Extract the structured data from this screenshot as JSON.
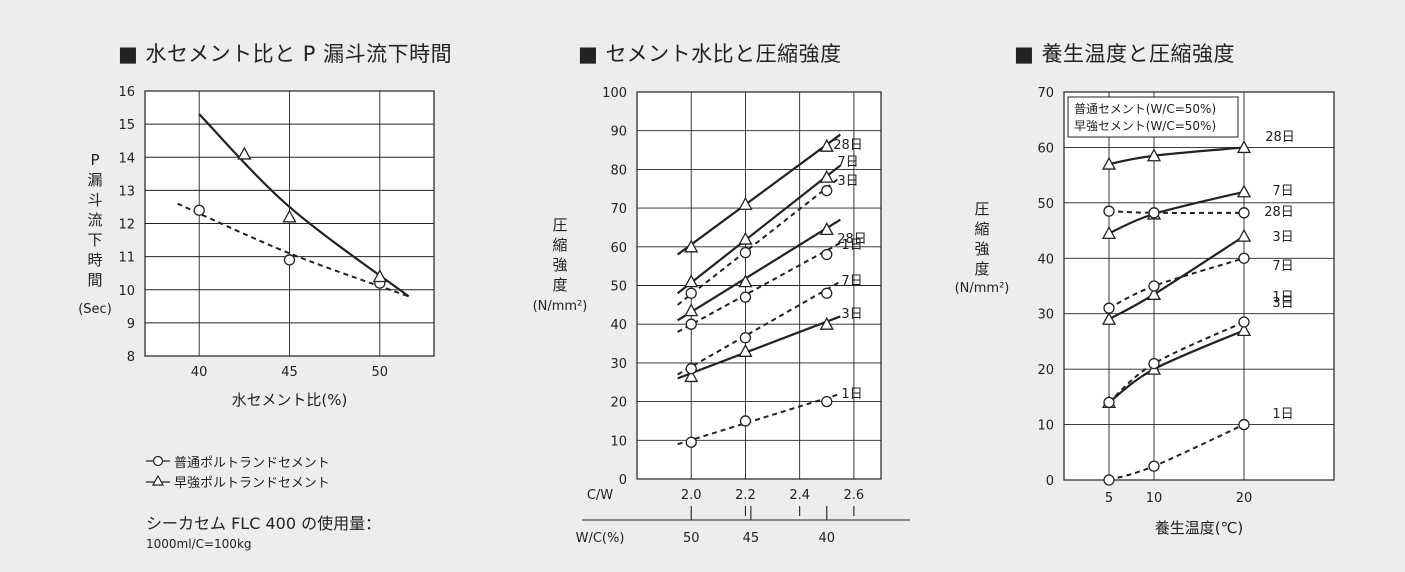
{
  "panel1": {
    "title": "■ 水セメント比と P 漏斗流下時間",
    "xlabel": "水セメント比(%)",
    "ylabel": "P漏斗流下時間",
    "yunit": "(Sec)",
    "legend": [
      {
        "symbol": "circle",
        "style": "dashed",
        "label": "普通ポルトランドセメント"
      },
      {
        "symbol": "triangle",
        "style": "solid",
        "label": "早強ポルトランドセメント"
      }
    ],
    "note_line1": "シーカセム FLC 400 の使用量：",
    "note_line2": "1000ml/C=100kg"
  },
  "panel2": {
    "title": "■ セメント水比と圧縮強度",
    "ylabel": "圧縮強度",
    "yunit": "(N/mm²)",
    "cw_label": "C/W",
    "wc_label": "W/C(%)",
    "wc_ticks": [
      "50",
      "45",
      "40"
    ]
  },
  "panel3": {
    "title": "■ 養生温度と圧縮強度",
    "xlabel": "養生温度(℃)",
    "ylabel": "圧縮強度",
    "yunit": "(N/mm²)",
    "legend_box": [
      "普通セメント(W/C=50%)",
      "早強セメント(W/C=50%)"
    ]
  },
  "colors": {
    "background": "#ededed",
    "plot_bg": "#ffffff",
    "ink": "#222222"
  },
  "chart_data": [
    {
      "type": "line",
      "title": "■ 水セメント比と P 漏斗流下時間",
      "xlabel": "水セメント比(%)",
      "ylabel": "P漏斗流下時間 (Sec)",
      "xlim": [
        37,
        53
      ],
      "ylim": [
        8,
        16
      ],
      "xticks": [
        40,
        45,
        50
      ],
      "yticks": [
        8,
        9,
        10,
        11,
        12,
        13,
        14,
        15,
        16
      ],
      "grid": "horizontal",
      "series": [
        {
          "name": "普通ポルトランドセメント",
          "marker": "circle",
          "style": "dashed",
          "points": [
            [
              40,
              12.4
            ],
            [
              45,
              10.9
            ],
            [
              50,
              10.2
            ]
          ],
          "fit": [
            [
              38.8,
              12.6
            ],
            [
              45,
              11.1
            ],
            [
              51.6,
              9.8
            ]
          ]
        },
        {
          "name": "早強ポルトランドセメント",
          "marker": "triangle",
          "style": "solid",
          "points": [
            [
              42.5,
              14.1
            ],
            [
              45,
              12.2
            ],
            [
              50,
              10.4
            ]
          ],
          "fit": [
            [
              40,
              15.3
            ],
            [
              45,
              12.5
            ],
            [
              51.6,
              9.8
            ]
          ]
        }
      ]
    },
    {
      "type": "line",
      "title": "■ セメント水比と圧縮強度",
      "xlabel": "C/W",
      "ylabel": "圧縮強度 (N/mm²)",
      "xlim": [
        1.8,
        2.7
      ],
      "ylim": [
        0,
        100
      ],
      "xticks": [
        2.0,
        2.2,
        2.4,
        2.6
      ],
      "yticks": [
        0,
        10,
        20,
        30,
        40,
        50,
        60,
        70,
        80,
        90,
        100
      ],
      "grid": "horizontal",
      "secondary_axis": {
        "label": "W/C(%)",
        "ticks": [
          {
            "cw": 2.0,
            "label": "50"
          },
          {
            "cw": 2.22,
            "label": "45"
          },
          {
            "cw": 2.5,
            "label": "40"
          }
        ]
      },
      "series": [
        {
          "name": "28日",
          "marker": "triangle",
          "style": "solid",
          "points": [
            [
              2.0,
              60
            ],
            [
              2.2,
              71
            ],
            [
              2.5,
              86
            ]
          ],
          "fit": [
            [
              1.95,
              58
            ],
            [
              2.55,
              89
            ]
          ]
        },
        {
          "name": "7日",
          "marker": "triangle",
          "style": "solid",
          "points": [
            [
              2.0,
              51
            ],
            [
              2.2,
              62
            ],
            [
              2.5,
              78
            ]
          ],
          "fit": [
            [
              1.95,
              48
            ],
            [
              2.55,
              81
            ]
          ]
        },
        {
          "name": "3日",
          "marker": "triangle",
          "style": "solid",
          "points": [
            [
              2.0,
              43.5
            ],
            [
              2.2,
              51
            ],
            [
              2.5,
              64.5
            ]
          ],
          "fit": [
            [
              1.95,
              41
            ],
            [
              2.55,
              67
            ]
          ]
        },
        {
          "name": "1日",
          "marker": "triangle",
          "style": "solid",
          "points": [
            [
              2.0,
              26.5
            ],
            [
              2.2,
              33
            ],
            [
              2.5,
              40
            ]
          ],
          "fit": [
            [
              1.95,
              26
            ],
            [
              2.55,
              42
            ]
          ]
        },
        {
          "name": "28日",
          "marker": "circle",
          "style": "dashed",
          "points": [
            [
              2.0,
              48
            ],
            [
              2.2,
              58.5
            ],
            [
              2.5,
              74.5
            ]
          ],
          "fit": [
            [
              1.95,
              45
            ],
            [
              2.55,
              78
            ]
          ]
        },
        {
          "name": "7日",
          "marker": "circle",
          "style": "dashed",
          "points": [
            [
              2.0,
              40
            ],
            [
              2.2,
              47
            ],
            [
              2.5,
              58
            ]
          ],
          "fit": [
            [
              1.95,
              38
            ],
            [
              2.55,
              61
            ]
          ]
        },
        {
          "name": "3日",
          "marker": "circle",
          "style": "dashed",
          "points": [
            [
              2.0,
              28.5
            ],
            [
              2.2,
              36.5
            ],
            [
              2.5,
              48
            ]
          ],
          "fit": [
            [
              1.95,
              27
            ],
            [
              2.55,
              51
            ]
          ]
        },
        {
          "name": "1日",
          "marker": "circle",
          "style": "dashed",
          "points": [
            [
              2.0,
              9.5
            ],
            [
              2.2,
              15
            ],
            [
              2.5,
              20
            ]
          ],
          "fit": [
            [
              1.95,
              9
            ],
            [
              2.55,
              22
            ]
          ]
        }
      ]
    },
    {
      "type": "line",
      "title": "■ 養生温度と圧縮強度",
      "xlabel": "養生温度(℃)",
      "ylabel": "圧縮強度 (N/mm²)",
      "xlim": [
        0,
        30
      ],
      "ylim": [
        0,
        70
      ],
      "xticks": [
        5,
        10,
        20
      ],
      "yticks": [
        0,
        10,
        20,
        30,
        40,
        50,
        60,
        70
      ],
      "grid": "horizontal",
      "legend": [
        "普通セメント(W/C=50%)",
        "早強セメント(W/C=50%)"
      ],
      "series": [
        {
          "name": "28日",
          "marker": "triangle",
          "style": "solid",
          "points": [
            [
              5,
              57
            ],
            [
              10,
              58.5
            ],
            [
              20,
              60
            ]
          ]
        },
        {
          "name": "7日",
          "marker": "triangle",
          "style": "solid",
          "points": [
            [
              5,
              44.5
            ],
            [
              10,
              48
            ],
            [
              20,
              52
            ]
          ]
        },
        {
          "name": "3日",
          "marker": "triangle",
          "style": "solid",
          "points": [
            [
              5,
              29
            ],
            [
              10,
              33.5
            ],
            [
              20,
              44
            ]
          ]
        },
        {
          "name": "1日",
          "marker": "triangle",
          "style": "solid",
          "points": [
            [
              5,
              14
            ],
            [
              10,
              20
            ],
            [
              20,
              27
            ]
          ]
        },
        {
          "name": "28日",
          "marker": "circle",
          "style": "dashed",
          "points": [
            [
              5,
              48.5
            ],
            [
              10,
              48.2
            ],
            [
              20,
              48.2
            ]
          ]
        },
        {
          "name": "7日",
          "marker": "circle",
          "style": "dashed",
          "points": [
            [
              5,
              31
            ],
            [
              10,
              35
            ],
            [
              20,
              40
            ]
          ]
        },
        {
          "name": "3日",
          "marker": "circle",
          "style": "dashed",
          "points": [
            [
              5,
              14
            ],
            [
              10,
              21
            ],
            [
              20,
              28.5
            ]
          ]
        },
        {
          "name": "1日",
          "marker": "circle",
          "style": "dashed",
          "points": [
            [
              5,
              0
            ],
            [
              10,
              2.5
            ],
            [
              20,
              10
            ]
          ]
        }
      ]
    }
  ]
}
